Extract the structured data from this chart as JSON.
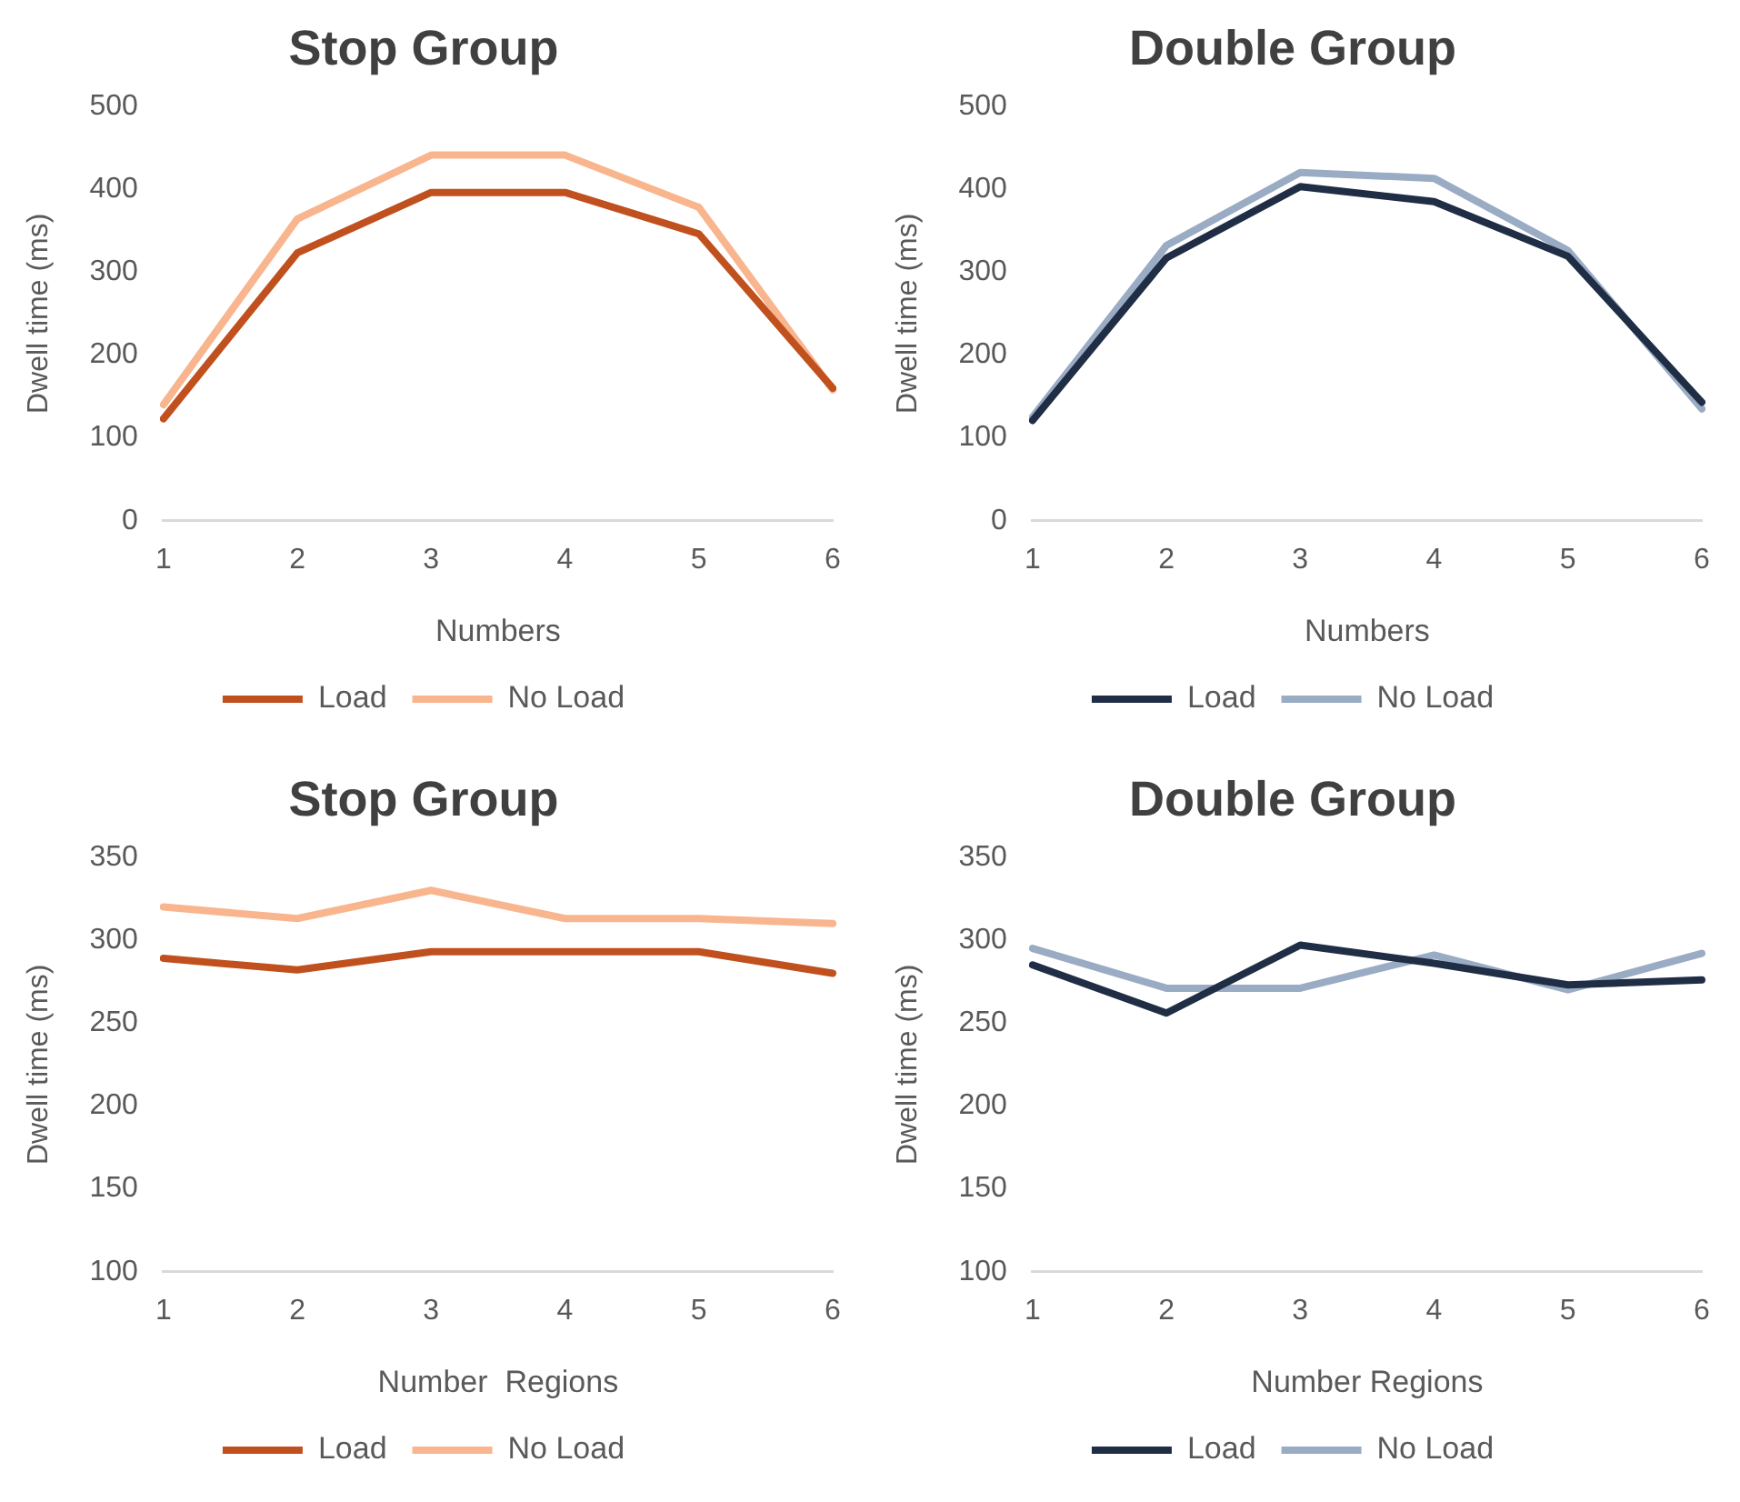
{
  "chart_data": [
    {
      "type": "line",
      "title": "Stop Group",
      "xlabel": "Numbers",
      "ylabel": "Dwell time (ms)",
      "categories": [
        "1",
        "2",
        "3",
        "4",
        "5",
        "6"
      ],
      "ylim": [
        0,
        500
      ],
      "yticks": [
        0,
        100,
        200,
        300,
        400,
        500
      ],
      "grid": false,
      "legend": "bottom",
      "series": [
        {
          "name": "Load",
          "color": "#c0501e",
          "values": [
            123,
            323,
            396,
            396,
            346,
            160
          ]
        },
        {
          "name": "No Load",
          "color": "#f8b58e",
          "values": [
            140,
            364,
            441,
            441,
            378,
            158
          ]
        }
      ]
    },
    {
      "type": "line",
      "title": "Double Group",
      "xlabel": "Numbers",
      "ylabel": "Dwell time (ms)",
      "categories": [
        "1",
        "2",
        "3",
        "4",
        "5",
        "6"
      ],
      "ylim": [
        0,
        500
      ],
      "yticks": [
        0,
        100,
        200,
        300,
        400,
        500
      ],
      "grid": false,
      "legend": "bottom",
      "series": [
        {
          "name": "Load",
          "color": "#1f2d45",
          "values": [
            121,
            317,
            403,
            385,
            319,
            143
          ]
        },
        {
          "name": "No Load",
          "color": "#9aabc4",
          "values": [
            125,
            332,
            420,
            413,
            326,
            135
          ]
        }
      ]
    },
    {
      "type": "line",
      "title": "Stop Group",
      "xlabel": "Number  Regions",
      "ylabel": "Dwell time (ms)",
      "categories": [
        "1",
        "2",
        "3",
        "4",
        "5",
        "6"
      ],
      "ylim": [
        100,
        350
      ],
      "yticks": [
        100,
        150,
        200,
        250,
        300,
        350
      ],
      "grid": false,
      "legend": "bottom",
      "series": [
        {
          "name": "Load",
          "color": "#c0501e",
          "values": [
            289,
            282,
            293,
            293,
            293,
            280
          ]
        },
        {
          "name": "No Load",
          "color": "#f8b58e",
          "values": [
            320,
            313,
            330,
            313,
            313,
            310
          ]
        }
      ]
    },
    {
      "type": "line",
      "title": "Double Group",
      "xlabel": "Number Regions",
      "ylabel": "Dwell time (ms)",
      "categories": [
        "1",
        "2",
        "3",
        "4",
        "5",
        "6"
      ],
      "ylim": [
        100,
        350
      ],
      "yticks": [
        100,
        150,
        200,
        250,
        300,
        350
      ],
      "grid": false,
      "legend": "bottom",
      "series": [
        {
          "name": "Load",
          "color": "#1f2d45",
          "values": [
            285,
            256,
            297,
            286,
            273,
            276
          ]
        },
        {
          "name": "No Load",
          "color": "#9aabc4",
          "values": [
            295,
            271,
            271,
            291,
            270,
            292
          ]
        }
      ]
    }
  ]
}
